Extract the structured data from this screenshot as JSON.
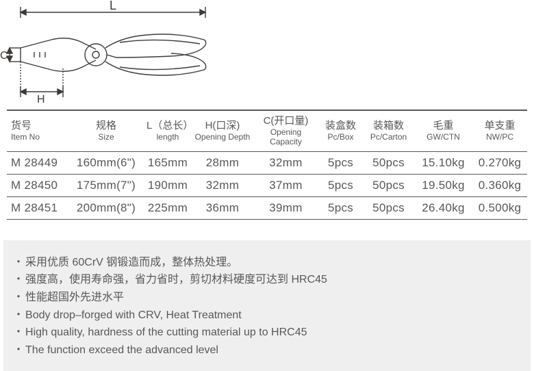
{
  "diagram": {
    "label_L": "L",
    "label_C": "C",
    "label_H": "H",
    "stroke": "#3e3a39",
    "stroke_width": 1.4
  },
  "table": {
    "headers": [
      {
        "cn": "货号",
        "en": "Item No"
      },
      {
        "cn": "规格",
        "en": "Size"
      },
      {
        "cn": "L（总长）",
        "en": "length"
      },
      {
        "cn": "H(口深)",
        "en": "Opening Depth"
      },
      {
        "cn": "C(开口量)",
        "en": "Opening Capacity"
      },
      {
        "cn": "装盒数",
        "en": "Pc/Box"
      },
      {
        "cn": "装箱数",
        "en": "Pc/Carton"
      },
      {
        "cn": "毛重",
        "en": "GW/CTN"
      },
      {
        "cn": "单支重",
        "en": "NW/PC"
      }
    ],
    "rows": [
      [
        "M 28449",
        "160mm(6\")",
        "165mm",
        "28mm",
        "32mm",
        "5pcs",
        "50pcs",
        "15.10kg",
        "0.270kg"
      ],
      [
        "M 28450",
        "175mm(7\")",
        "190mm",
        "32mm",
        "37mm",
        "5pcs",
        "50pcs",
        "19.50kg",
        "0.360kg"
      ],
      [
        "M 28451",
        "200mm(8\")",
        "225mm",
        "36mm",
        "39mm",
        "5pcs",
        "50pcs",
        "26.40kg",
        "0.500kg"
      ]
    ],
    "col_classes": [
      "col-item",
      "col-size",
      "col-L",
      "col-H",
      "col-C",
      "col-pcbox",
      "col-pccarton",
      "col-gw",
      "col-nw"
    ]
  },
  "features": [
    "采用优质 60CrV 钢锻造而成，整体热处理。",
    "强度高，使用寿命强，省力省时，剪切材料硬度可达到 HRC45",
    "性能超国外先进水平",
    "Body drop–forged with CRV, Heat Treatment",
    "High quality, hardness of the cutting material up to HRC45",
    "The function exceed the advanced level"
  ],
  "colors": {
    "text": "#595757",
    "border": "#595757",
    "feature_bg": "#efefef",
    "page_bg": "#ffffff"
  }
}
